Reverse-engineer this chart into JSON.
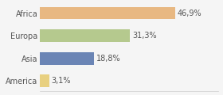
{
  "categories": [
    "Africa",
    "Europa",
    "Asia",
    "America"
  ],
  "values": [
    46.9,
    31.3,
    18.8,
    3.1
  ],
  "labels": [
    "46,9%",
    "31,3%",
    "18,8%",
    "3,1%"
  ],
  "bar_colors": [
    "#e8b882",
    "#b5c98e",
    "#6b85b5",
    "#e8d080"
  ],
  "background_color": "#f5f5f5",
  "xlim": [
    0,
    62
  ],
  "label_fontsize": 7,
  "tick_fontsize": 7,
  "bar_height": 0.55
}
